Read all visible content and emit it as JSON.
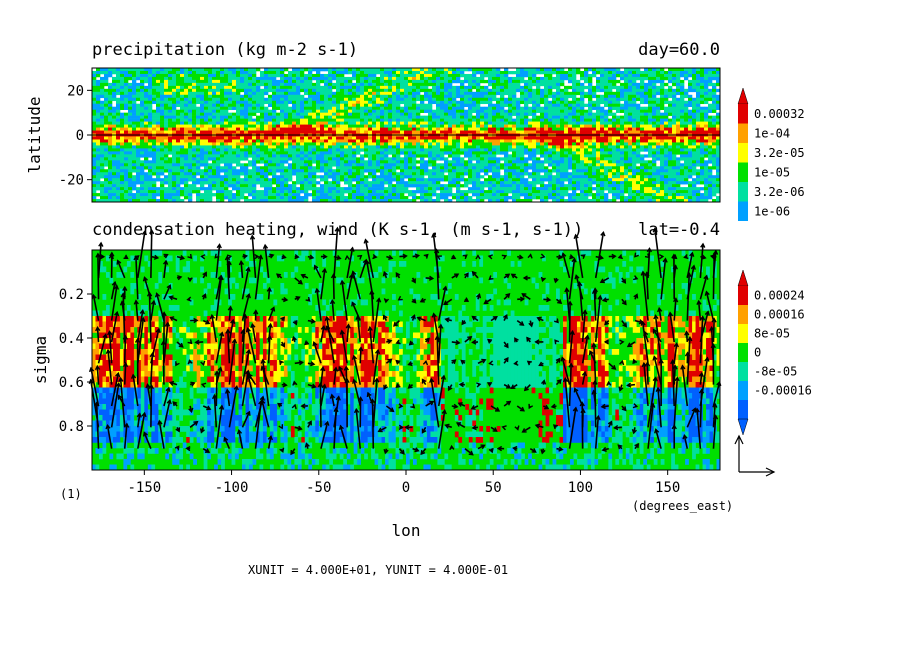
{
  "chart_data": [
    {
      "type": "heatmap",
      "title": "precipitation (kg m-2 s-1)",
      "title_right": "day=60.0",
      "xlim": [
        -180,
        180
      ],
      "ylim": [
        -30,
        30
      ],
      "ylabel": "latitude",
      "yticks": [
        {
          "value": 20,
          "label": "20"
        },
        {
          "value": 0,
          "label": "0"
        },
        {
          "value": -20,
          "label": "-20"
        }
      ],
      "zero_line": true,
      "colorbar": {
        "levels": [
          "0.00032",
          "1e-04",
          "3.2e-05",
          "1e-05",
          "3.2e-06",
          "1e-06"
        ],
        "colors": [
          "#e00000",
          "#ffa000",
          "#ffff00",
          "#00e000",
          "#00e0a0",
          "#00a0ff"
        ],
        "top_arrow_color": "#e00000",
        "bottom_arrow_color": null
      }
    },
    {
      "type": "heatmap",
      "title": "condensation heating, wind (K s-1, (m s-1, s-1))",
      "title_right": "lat=-0.4",
      "xlim": [
        -180,
        180
      ],
      "ylim": [
        1.0,
        0.0
      ],
      "xlabel": "lon",
      "xunit_label": "(degrees_east)",
      "ylabel": "sigma",
      "xticks": [
        {
          "value": -150,
          "label": "-150"
        },
        {
          "value": -100,
          "label": "-100"
        },
        {
          "value": -50,
          "label": "-50"
        },
        {
          "value": 0,
          "label": "0"
        },
        {
          "value": 50,
          "label": "50"
        },
        {
          "value": 100,
          "label": "100"
        },
        {
          "value": 150,
          "label": "150"
        }
      ],
      "yticks": [
        {
          "value": 0.2,
          "label": "0.2"
        },
        {
          "value": 0.4,
          "label": "0.4"
        },
        {
          "value": 0.6,
          "label": "0.6"
        },
        {
          "value": 0.8,
          "label": "0.8"
        }
      ],
      "colorbar": {
        "levels": [
          "0.00024",
          "0.00016",
          "8e-05",
          "0",
          "-8e-05",
          "-0.00016"
        ],
        "colors": [
          "#e00000",
          "#ffa000",
          "#ffff00",
          "#00e000",
          "#00e0a0",
          "#00a0ff",
          "#0060ff"
        ],
        "top_arrow_color": "#e00000",
        "bottom_arrow_color": "#0060ff"
      },
      "vectors": true,
      "vector_unit_text": "XUNIT = 4.000E+01, YUNIT = 4.000E-01",
      "frame_label": "(1)"
    }
  ],
  "colors": {
    "background": "#ffffff",
    "axis": "#000000",
    "vector": "#000000"
  }
}
